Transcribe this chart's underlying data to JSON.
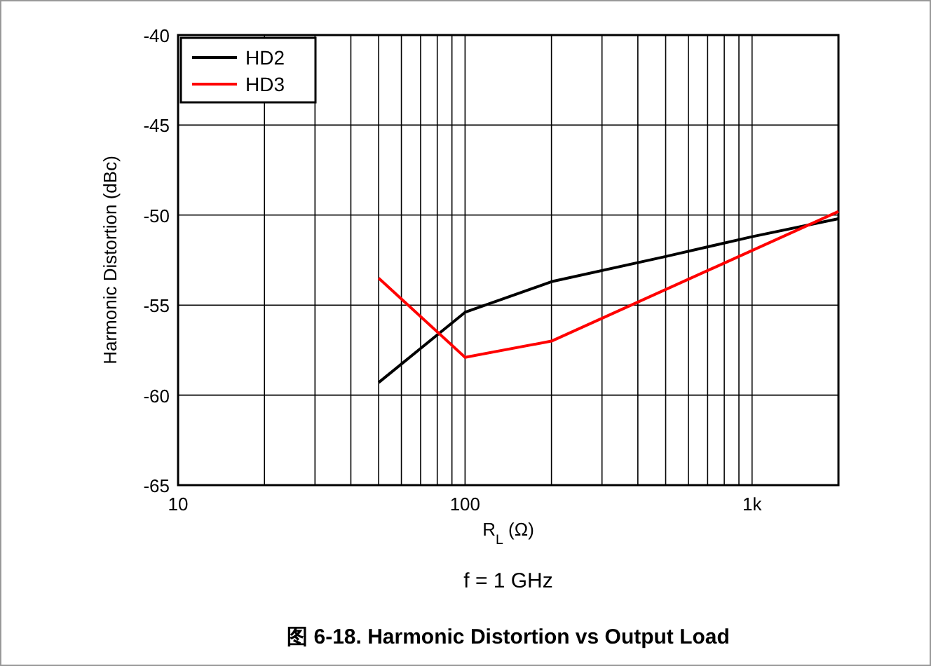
{
  "chart_data": {
    "type": "line",
    "title": "图 6-18. Harmonic Distortion vs Output Load",
    "xlabel": "R$_{L}$ (Ω)",
    "ylabel": "Harmonic Distortion (dBc)",
    "annotations": [
      "f = 1 GHz"
    ],
    "series": [
      {
        "name": "HD2",
        "color": "#000000",
        "x": [
          50,
          100,
          200,
          500,
          1000,
          2000
        ],
        "values": [
          -59.3,
          -55.4,
          -53.7,
          -52.3,
          -51.2,
          -50.2
        ]
      },
      {
        "name": "HD3",
        "color": "#ff0000",
        "x": [
          50,
          100,
          200,
          2000
        ],
        "values": [
          -53.5,
          -57.9,
          -57.0,
          -49.8
        ]
      }
    ],
    "log": "x",
    "xlim": [
      10,
      2000
    ],
    "xticks": [
      10,
      {
        "value": 20,
        "label": null
      },
      {
        "value": 30,
        "label": null
      },
      {
        "value": 40,
        "label": null
      },
      {
        "value": 50,
        "label": null
      },
      {
        "value": 60,
        "label": null
      },
      {
        "value": 70,
        "label": null
      },
      {
        "value": 80,
        "label": null
      },
      {
        "value": 90,
        "label": null
      },
      100,
      {
        "value": 200,
        "label": null
      },
      {
        "value": 300,
        "label": null
      },
      {
        "value": 400,
        "label": null
      },
      {
        "value": 500,
        "label": null
      },
      {
        "value": 600,
        "label": null
      },
      {
        "value": 700,
        "label": null
      },
      {
        "value": 800,
        "label": null
      },
      {
        "value": 900,
        "label": null
      },
      {
        "value": 1000,
        "label": "1k"
      },
      {
        "value": 2000,
        "label": null
      }
    ],
    "ylim": [
      -65,
      -40
    ],
    "yticks": [
      -65,
      -60,
      -55,
      -50,
      -45,
      -40
    ],
    "grid": true,
    "legend": "top left",
    "marker": "none",
    "line_style": "solid"
  }
}
